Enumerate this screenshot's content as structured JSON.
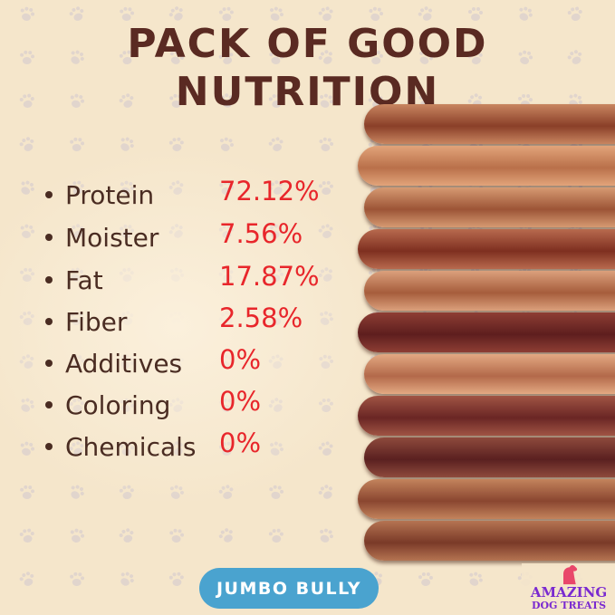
{
  "title_lines": [
    "PACK OF GOOD",
    "NUTRITION"
  ],
  "nutrition": [
    {
      "label": "Protein",
      "value": "72.12%"
    },
    {
      "label": "Moister",
      "value": "7.56%"
    },
    {
      "label": "Fat",
      "value": "17.87%"
    },
    {
      "label": "Fiber",
      "value": "2.58%"
    },
    {
      "label": "Additives",
      "value": "0%"
    },
    {
      "label": "Coloring",
      "value": "0%"
    },
    {
      "label": "Chemicals",
      "value": "0%"
    }
  ],
  "badge": "JUMBO BULLY",
  "logo": {
    "line1": "AMAZING",
    "line2": "DOG TREATS"
  },
  "colors": {
    "background": "#f5e6cb",
    "title": "#5a2a22",
    "value": "#e8262b",
    "badge": "#4aa3cf",
    "logo": "#7a2ad0"
  }
}
